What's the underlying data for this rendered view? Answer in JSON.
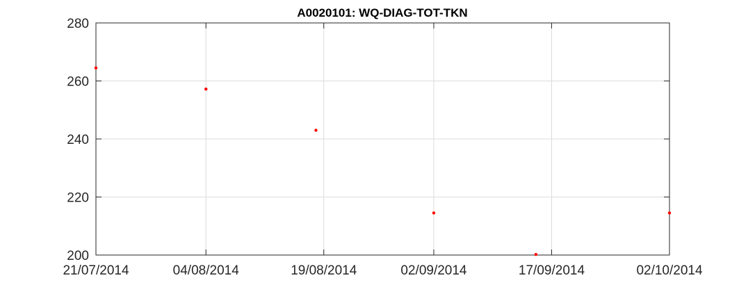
{
  "chart_data": {
    "type": "scatter",
    "title": "A0020101: WQ-DIAG-TOT-TKN",
    "xlabel": "",
    "ylabel": "",
    "x_ticks": [
      "21/07/2014",
      "04/08/2014",
      "19/08/2014",
      "02/09/2014",
      "17/09/2014",
      "02/10/2014"
    ],
    "x_tick_dates": [
      "2014-07-21",
      "2014-08-04",
      "2014-08-19",
      "2014-09-02",
      "2014-09-17",
      "2014-10-02"
    ],
    "xlim": [
      "2014-07-21",
      "2014-10-02"
    ],
    "y_ticks": [
      200,
      220,
      240,
      260,
      280
    ],
    "ylim": [
      200,
      280
    ],
    "grid": true,
    "marker_color": "#ff0000",
    "series": [
      {
        "points": [
          {
            "x": "2014-07-21",
            "y": 264.5
          },
          {
            "x": "2014-08-04",
            "y": 257.2
          },
          {
            "x": "2014-08-18",
            "y": 243.0
          },
          {
            "x": "2014-09-02",
            "y": 214.5
          },
          {
            "x": "2014-09-15",
            "y": 200.2
          },
          {
            "x": "2014-10-02",
            "y": 214.5
          }
        ]
      }
    ]
  }
}
